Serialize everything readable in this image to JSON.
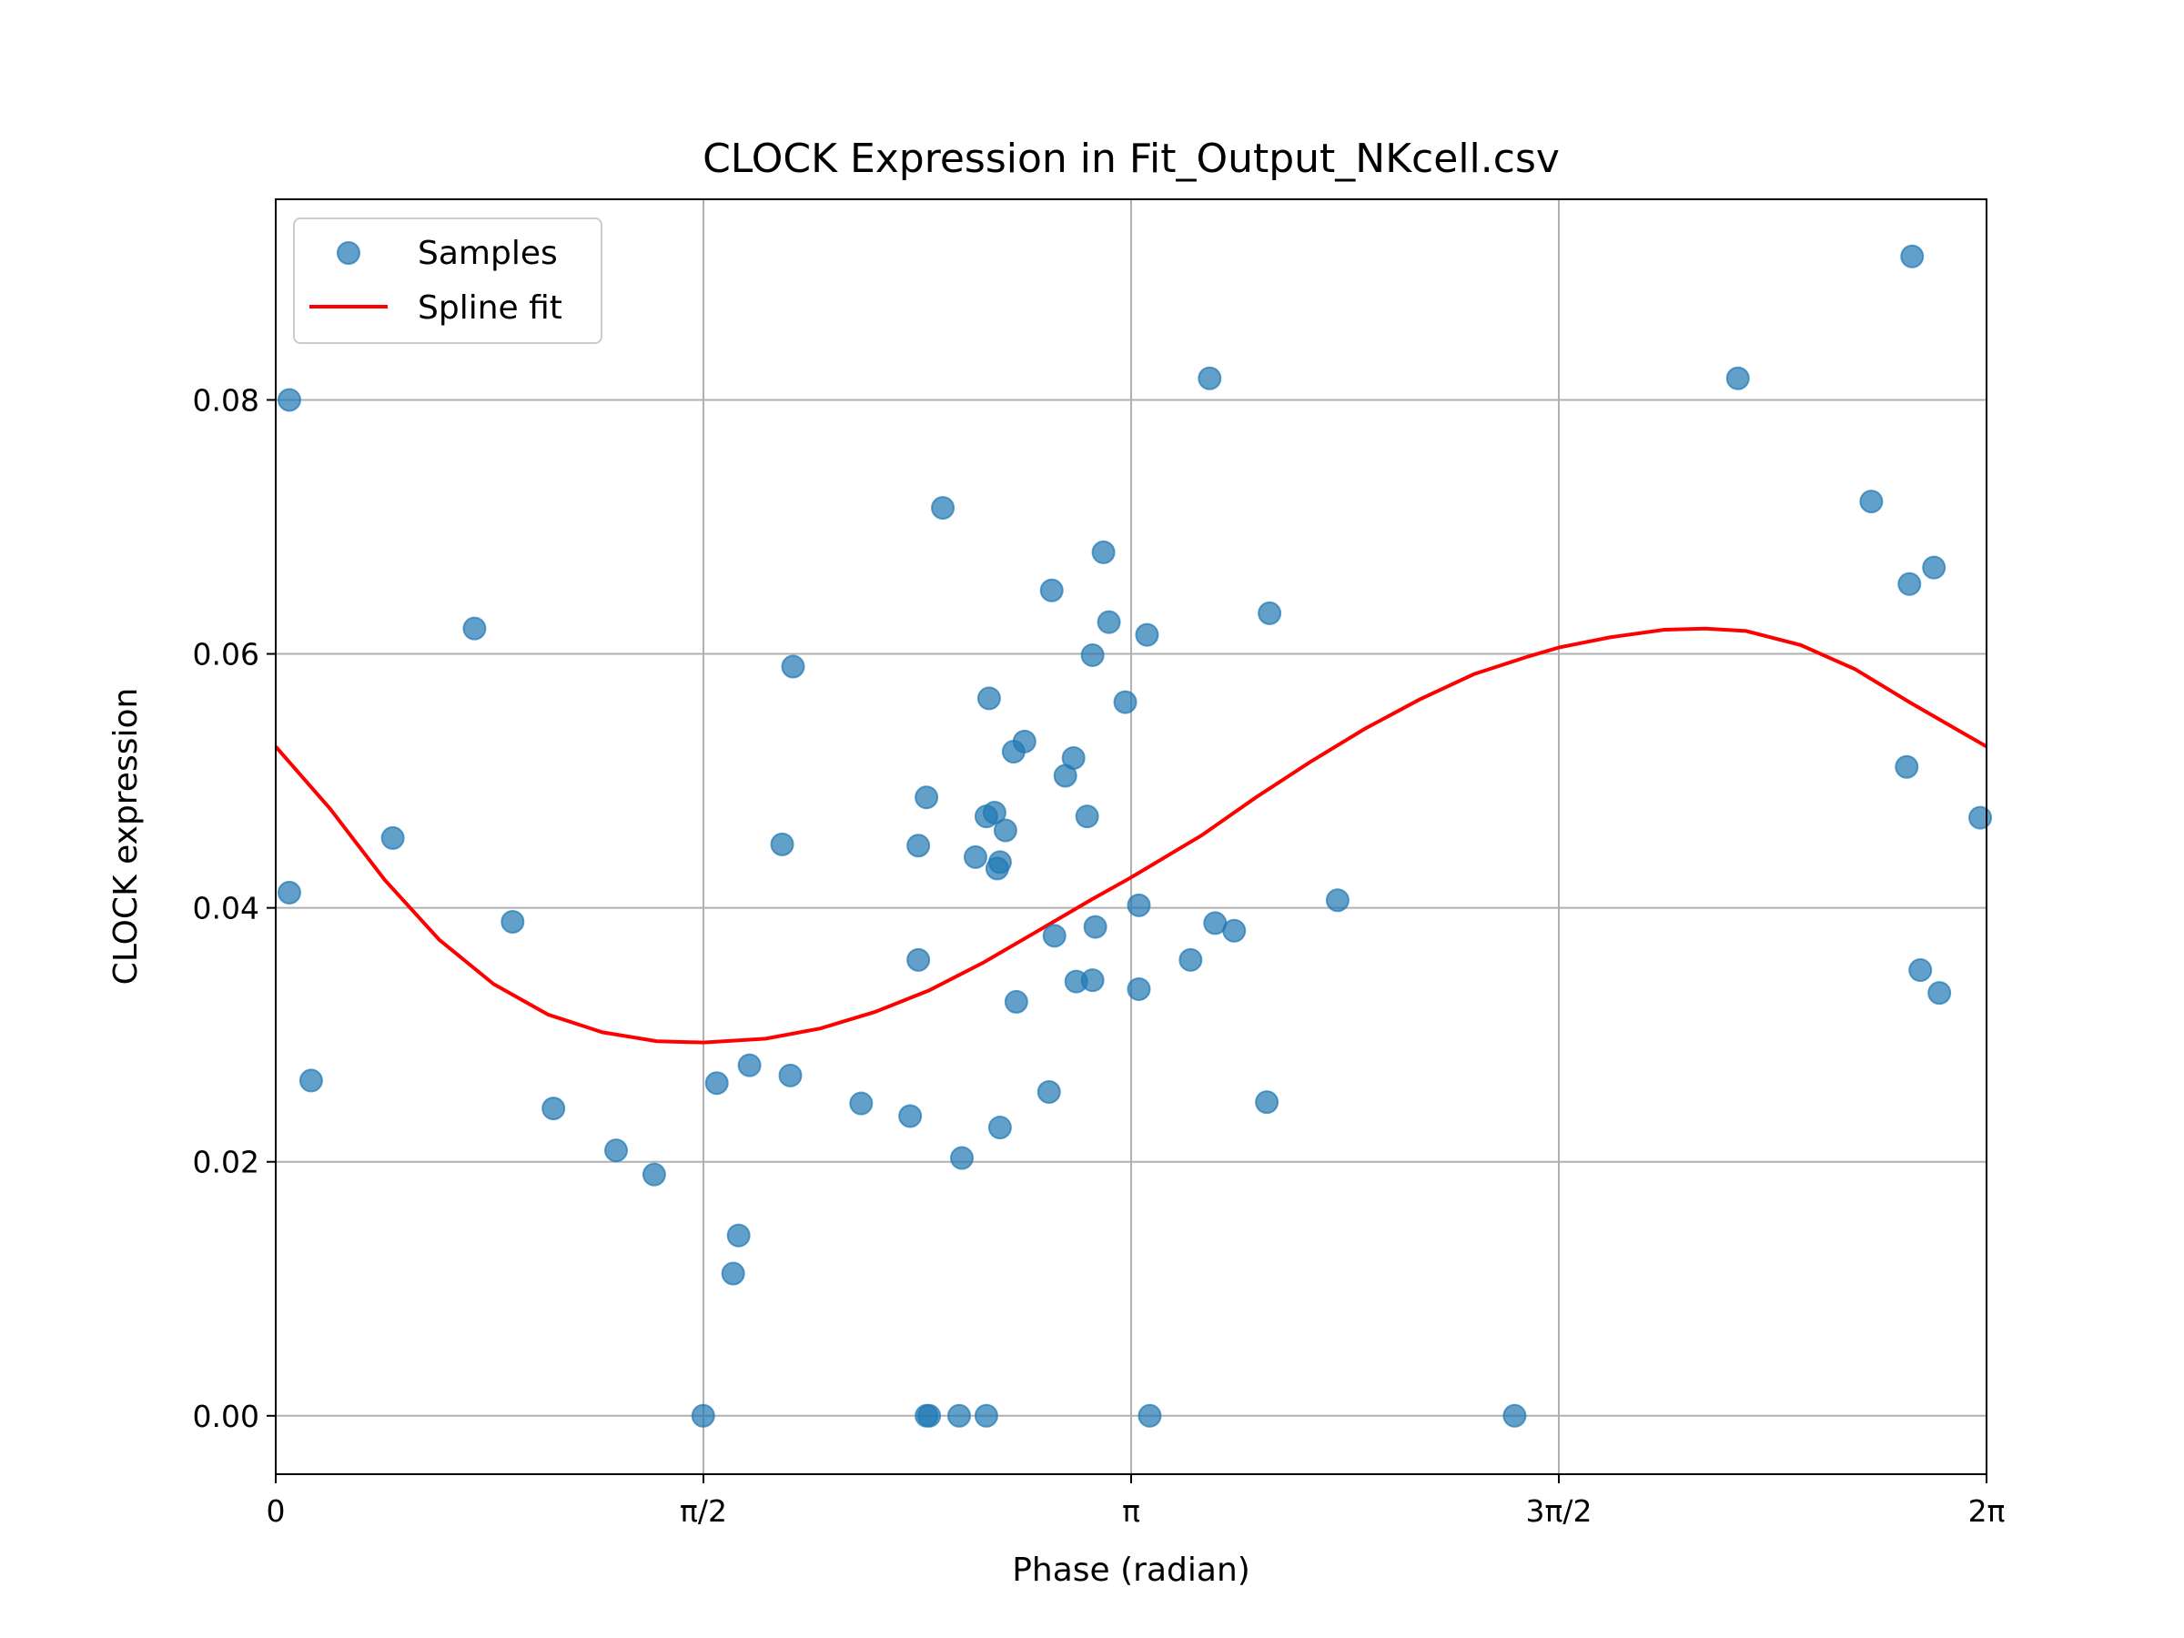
{
  "chart_data": {
    "type": "scatter",
    "title": "CLOCK Expression in Fit_Output_NKcell.csv",
    "xlabel": "Phase (radian)",
    "ylabel": "CLOCK expression",
    "xlim": [
      0,
      6.2832
    ],
    "ylim": [
      -0.0046,
      0.0958
    ],
    "xticks": [
      {
        "value": 0,
        "label": "0"
      },
      {
        "value": 1.5708,
        "label": "π/2"
      },
      {
        "value": 3.1416,
        "label": "π"
      },
      {
        "value": 4.7124,
        "label": "3π/2"
      },
      {
        "value": 6.2832,
        "label": "2π"
      }
    ],
    "yticks": [
      {
        "value": 0.0,
        "label": "0.00"
      },
      {
        "value": 0.02,
        "label": "0.02"
      },
      {
        "value": 0.04,
        "label": "0.04"
      },
      {
        "value": 0.06,
        "label": "0.06"
      },
      {
        "value": 0.08,
        "label": "0.08"
      }
    ],
    "grid": true,
    "legend": {
      "position": "top-left",
      "entries": [
        {
          "label": "Samples",
          "marker": "circle",
          "color": "#1f77b4"
        },
        {
          "label": "Spline fit",
          "marker": "line",
          "color": "#ff0000"
        }
      ]
    },
    "series": [
      {
        "name": "Samples",
        "kind": "scatter",
        "color": "#1f77b4",
        "points": [
          [
            0.05,
            0.08
          ],
          [
            0.05,
            0.0412
          ],
          [
            0.13,
            0.0264
          ],
          [
            0.43,
            0.0455
          ],
          [
            0.73,
            0.062
          ],
          [
            0.87,
            0.0389
          ],
          [
            1.02,
            0.0242
          ],
          [
            1.25,
            0.0209
          ],
          [
            1.39,
            0.019
          ],
          [
            1.57,
            0.0
          ],
          [
            1.62,
            0.0262
          ],
          [
            1.68,
            0.0112
          ],
          [
            1.7,
            0.0142
          ],
          [
            1.74,
            0.0276
          ],
          [
            1.86,
            0.045
          ],
          [
            1.89,
            0.0268
          ],
          [
            1.9,
            0.059
          ],
          [
            2.15,
            0.0246
          ],
          [
            2.33,
            0.0236
          ],
          [
            2.36,
            0.0359
          ],
          [
            2.36,
            0.0449
          ],
          [
            2.39,
            0.0487
          ],
          [
            2.39,
            0.0
          ],
          [
            2.4,
            0.0
          ],
          [
            2.45,
            0.0715
          ],
          [
            2.51,
            0.0
          ],
          [
            2.52,
            0.0203
          ],
          [
            2.57,
            0.044
          ],
          [
            2.61,
            0.0472
          ],
          [
            2.61,
            0.0
          ],
          [
            2.62,
            0.0565
          ],
          [
            2.64,
            0.0475
          ],
          [
            2.65,
            0.0431
          ],
          [
            2.66,
            0.0227
          ],
          [
            2.66,
            0.0436
          ],
          [
            2.68,
            0.0461
          ],
          [
            2.71,
            0.0523
          ],
          [
            2.72,
            0.0326
          ],
          [
            2.75,
            0.0531
          ],
          [
            2.84,
            0.0255
          ],
          [
            2.85,
            0.065
          ],
          [
            2.86,
            0.0378
          ],
          [
            2.9,
            0.0504
          ],
          [
            2.93,
            0.0518
          ],
          [
            2.94,
            0.0342
          ],
          [
            2.98,
            0.0472
          ],
          [
            3.0,
            0.0343
          ],
          [
            3.0,
            0.0599
          ],
          [
            3.01,
            0.0385
          ],
          [
            3.04,
            0.068
          ],
          [
            3.06,
            0.0625
          ],
          [
            3.12,
            0.0562
          ],
          [
            3.17,
            0.0336
          ],
          [
            3.17,
            0.0402
          ],
          [
            3.2,
            0.0615
          ],
          [
            3.21,
            0.0
          ],
          [
            3.36,
            0.0359
          ],
          [
            3.43,
            0.0817
          ],
          [
            3.45,
            0.0388
          ],
          [
            3.52,
            0.0382
          ],
          [
            3.64,
            0.0247
          ],
          [
            3.65,
            0.0632
          ],
          [
            3.9,
            0.0406
          ],
          [
            4.55,
            0.0
          ],
          [
            5.37,
            0.0817
          ],
          [
            5.86,
            0.072
          ],
          [
            5.99,
            0.0511
          ],
          [
            6.0,
            0.0655
          ],
          [
            6.01,
            0.0913
          ],
          [
            6.04,
            0.0351
          ],
          [
            6.09,
            0.0668
          ],
          [
            6.11,
            0.0333
          ],
          [
            6.26,
            0.0471
          ]
        ]
      },
      {
        "name": "Spline fit",
        "kind": "line",
        "color": "#ff0000",
        "points": [
          [
            0.0,
            0.0527
          ],
          [
            0.2,
            0.0478
          ],
          [
            0.4,
            0.0422
          ],
          [
            0.6,
            0.0375
          ],
          [
            0.8,
            0.034
          ],
          [
            1.0,
            0.0316
          ],
          [
            1.2,
            0.0302
          ],
          [
            1.4,
            0.0295
          ],
          [
            1.5708,
            0.0294
          ],
          [
            1.8,
            0.0297
          ],
          [
            2.0,
            0.0305
          ],
          [
            2.2,
            0.0318
          ],
          [
            2.4,
            0.0335
          ],
          [
            2.6,
            0.0357
          ],
          [
            2.8,
            0.0382
          ],
          [
            3.0,
            0.0407
          ],
          [
            3.1416,
            0.0424
          ],
          [
            3.4,
            0.0457
          ],
          [
            3.6,
            0.0487
          ],
          [
            3.8,
            0.0515
          ],
          [
            4.0,
            0.0541
          ],
          [
            4.2,
            0.0564
          ],
          [
            4.4,
            0.0584
          ],
          [
            4.6,
            0.0598
          ],
          [
            4.7124,
            0.0605
          ],
          [
            4.9,
            0.0613
          ],
          [
            5.1,
            0.0619
          ],
          [
            5.25,
            0.062
          ],
          [
            5.4,
            0.0618
          ],
          [
            5.6,
            0.0607
          ],
          [
            5.8,
            0.0588
          ],
          [
            6.0,
            0.0562
          ],
          [
            6.2832,
            0.0527
          ]
        ]
      }
    ]
  }
}
